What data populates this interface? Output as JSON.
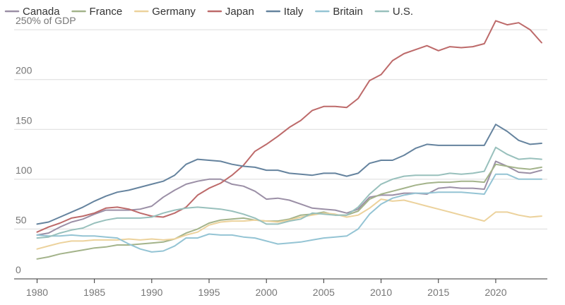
{
  "chart_data": {
    "type": "line",
    "title": "",
    "xlabel": "",
    "ylabel": "",
    "grid": "horizontal",
    "legend_placement": "top-left",
    "xlim": [
      1978,
      2024.5
    ],
    "ylim": [
      0,
      260
    ],
    "x_ticks": [
      1980,
      1985,
      1990,
      1995,
      2000,
      2005,
      2010,
      2015,
      2020
    ],
    "x_tick_labels": [
      "1980",
      "1985",
      "1990",
      "1995",
      "2000",
      "2005",
      "2010",
      "2015",
      "2020"
    ],
    "y_ticks": [
      0,
      50,
      100,
      150,
      200,
      250
    ],
    "y_tick_labels": [
      "0",
      "50",
      "100",
      "150",
      "200",
      "250% of GDP"
    ],
    "x": [
      1980,
      1981,
      1982,
      1983,
      1984,
      1985,
      1986,
      1987,
      1988,
      1989,
      1990,
      1991,
      1992,
      1993,
      1994,
      1995,
      1996,
      1997,
      1998,
      1999,
      2000,
      2001,
      2002,
      2003,
      2004,
      2005,
      2006,
      2007,
      2008,
      2009,
      2010,
      2011,
      2012,
      2013,
      2014,
      2015,
      2016,
      2017,
      2018,
      2019,
      2020,
      2021,
      2022,
      2023,
      2024
    ],
    "series": [
      {
        "name": "Canada",
        "color": "#9b8fa6",
        "values": [
          44,
          46,
          52,
          57,
          60,
          65,
          69,
          69,
          69,
          70,
          73,
          82,
          89,
          95,
          98,
          100,
          100,
          95,
          93,
          88,
          80,
          81,
          79,
          75,
          71,
          70,
          69,
          66,
          70,
          82,
          84,
          84,
          86,
          86,
          85,
          91,
          92,
          91,
          91,
          90,
          118,
          113,
          107,
          106,
          109
        ]
      },
      {
        "name": "France",
        "color": "#a3b38a",
        "values": [
          20,
          22,
          25,
          27,
          29,
          31,
          32,
          34,
          34,
          35,
          36,
          37,
          40,
          46,
          50,
          56,
          59,
          60,
          61,
          59,
          58,
          58,
          60,
          64,
          65,
          67,
          64,
          64,
          68,
          80,
          85,
          88,
          91,
          94,
          96,
          97,
          97,
          98,
          98,
          97,
          115,
          113,
          111,
          110,
          112
        ]
      },
      {
        "name": "Germany",
        "color": "#ecd29c",
        "values": [
          30,
          33,
          36,
          38,
          38,
          39,
          39,
          39,
          40,
          39,
          40,
          39,
          40,
          44,
          47,
          54,
          57,
          58,
          58,
          59,
          58,
          57,
          59,
          62,
          64,
          66,
          65,
          62,
          64,
          71,
          80,
          78,
          79,
          76,
          73,
          70,
          67,
          64,
          61,
          58,
          67,
          67,
          64,
          62,
          63
        ]
      },
      {
        "name": "Japan",
        "color": "#bd6a6a",
        "values": [
          47,
          52,
          56,
          61,
          63,
          66,
          71,
          72,
          70,
          66,
          63,
          62,
          66,
          72,
          84,
          91,
          96,
          104,
          114,
          128,
          135,
          143,
          152,
          159,
          169,
          173,
          173,
          172,
          181,
          199,
          205,
          219,
          226,
          230,
          234,
          229,
          233,
          232,
          233,
          236,
          259,
          255,
          257,
          250,
          237
        ]
      },
      {
        "name": "Italy",
        "color": "#65839e",
        "values": [
          55,
          57,
          62,
          67,
          72,
          78,
          83,
          87,
          89,
          92,
          95,
          98,
          104,
          115,
          120,
          119,
          118,
          115,
          113,
          112,
          109,
          109,
          106,
          105,
          104,
          106,
          106,
          103,
          106,
          116,
          119,
          119,
          124,
          131,
          135,
          134,
          134,
          134,
          134,
          134,
          155,
          148,
          139,
          135,
          136
        ]
      },
      {
        "name": "Britain",
        "color": "#94c4d4",
        "values": [
          44,
          43,
          43,
          44,
          43,
          43,
          42,
          41,
          35,
          30,
          27,
          28,
          33,
          41,
          41,
          45,
          44,
          44,
          42,
          41,
          38,
          35,
          36,
          37,
          39,
          41,
          42,
          43,
          50,
          65,
          75,
          81,
          84,
          86,
          86,
          87,
          87,
          87,
          86,
          85,
          105,
          105,
          100,
          100,
          100
        ]
      },
      {
        "name": "U.S.",
        "color": "#98c0bc",
        "values": [
          41,
          42,
          46,
          49,
          51,
          56,
          59,
          61,
          61,
          61,
          62,
          66,
          69,
          71,
          72,
          71,
          70,
          68,
          65,
          61,
          55,
          55,
          58,
          60,
          66,
          65,
          64,
          64,
          72,
          85,
          95,
          100,
          103,
          104,
          104,
          104,
          106,
          105,
          106,
          108,
          132,
          125,
          120,
          121,
          120
        ]
      }
    ]
  }
}
